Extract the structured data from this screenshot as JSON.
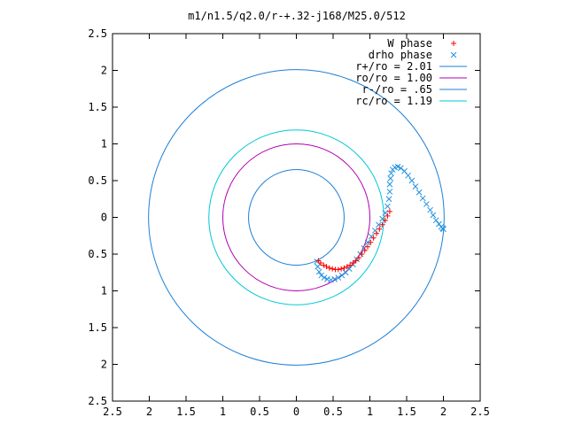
{
  "chart_data": {
    "type": "scatter",
    "title": "m1/n1.5/q2.0/r-+.32-j168/M25.0/512",
    "xlabel": "",
    "ylabel": "",
    "xlim": [
      -2.5,
      2.5
    ],
    "ylim": [
      -2.5,
      2.5
    ],
    "x_ticks": [
      -2.5,
      -2,
      -1.5,
      -1,
      -0.5,
      0,
      0.5,
      1,
      1.5,
      2,
      2.5
    ],
    "x_tick_labels": [
      "2.5",
      "2",
      "1.5",
      "1",
      "0.5",
      "0",
      "0.5",
      "1",
      "1.5",
      "2",
      "2.5"
    ],
    "y_ticks": [
      2.5,
      2,
      1.5,
      1,
      0.5,
      0,
      -0.5,
      -1,
      -1.5,
      -2,
      -2.5
    ],
    "y_tick_labels": [
      "2.5",
      "2",
      "1.5",
      "1",
      "0.5",
      "0",
      "0.5",
      "1",
      "1.5",
      "2",
      "2.5"
    ],
    "grid": false,
    "legend_position": "top-right",
    "series": [
      {
        "name": "W phase",
        "marker": "plus",
        "color": "#ff0000",
        "x": [
          0.3,
          0.33,
          0.37,
          0.41,
          0.45,
          0.49,
          0.53,
          0.57,
          0.61,
          0.65,
          0.69,
          0.73,
          0.77,
          0.81,
          0.85,
          0.89,
          0.93,
          0.97,
          1.01,
          1.05,
          1.09,
          1.13,
          1.17,
          1.21,
          1.24,
          1.27
        ],
        "y": [
          -0.59,
          -0.62,
          -0.65,
          -0.67,
          -0.69,
          -0.7,
          -0.71,
          -0.71,
          -0.7,
          -0.69,
          -0.67,
          -0.65,
          -0.62,
          -0.59,
          -0.55,
          -0.5,
          -0.45,
          -0.4,
          -0.34,
          -0.28,
          -0.22,
          -0.16,
          -0.1,
          -0.04,
          0.02,
          0.08
        ]
      },
      {
        "name": "drho phase",
        "marker": "cross",
        "color": "#2090e0",
        "x": [
          0.28,
          0.29,
          0.31,
          0.34,
          0.38,
          0.42,
          0.47,
          0.52,
          0.57,
          0.62,
          0.67,
          0.72,
          0.77,
          0.82,
          0.87,
          0.92,
          0.97,
          1.02,
          1.07,
          1.12,
          1.17,
          1.21,
          1.24,
          1.26,
          1.27,
          1.27,
          1.28,
          1.29,
          1.31,
          1.34,
          1.38,
          1.42,
          1.47,
          1.52,
          1.57,
          1.62,
          1.67,
          1.72,
          1.77,
          1.82,
          1.86,
          1.9,
          1.94,
          1.97,
          1.99,
          2.0
        ],
        "y": [
          -0.6,
          -0.67,
          -0.74,
          -0.79,
          -0.82,
          -0.84,
          -0.85,
          -0.84,
          -0.82,
          -0.79,
          -0.75,
          -0.7,
          -0.64,
          -0.57,
          -0.5,
          -0.42,
          -0.34,
          -0.26,
          -0.18,
          -0.1,
          -0.02,
          0.06,
          0.15,
          0.25,
          0.35,
          0.45,
          0.53,
          0.6,
          0.65,
          0.68,
          0.69,
          0.67,
          0.63,
          0.57,
          0.5,
          0.42,
          0.34,
          0.26,
          0.18,
          0.1,
          0.03,
          -0.04,
          -0.09,
          -0.13,
          -0.15,
          -0.16
        ]
      },
      {
        "name": "r+/ro = 2.01",
        "type": "circle",
        "radius": 2.01,
        "color": "#1e7fd6"
      },
      {
        "name": "ro/ro = 1.00",
        "type": "circle",
        "radius": 1.0,
        "color": "#b000b0"
      },
      {
        "name": "r-/ro = .65",
        "type": "circle",
        "radius": 0.65,
        "color": "#1e7fd6"
      },
      {
        "name": "rc/ro = 1.19",
        "type": "circle",
        "radius": 1.19,
        "color": "#00c8d8"
      }
    ]
  }
}
